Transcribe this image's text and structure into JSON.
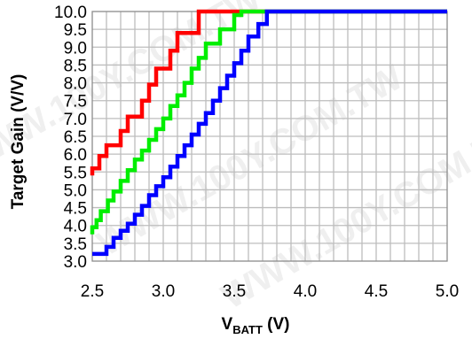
{
  "chart_data": {
    "type": "line",
    "xlabel_main": "V",
    "xlabel_sub": "BATT",
    "xlabel_unit": " (V)",
    "ylabel": "Target Gain (V/V)",
    "xlim": [
      2.5,
      5.0
    ],
    "ylim": [
      3.0,
      10.0
    ],
    "x_ticks": [
      "2.5",
      "3.0",
      "3.5",
      "4.0",
      "4.5",
      "5.0"
    ],
    "y_ticks": [
      "3.0",
      "3.5",
      "4.0",
      "4.5",
      "5.0",
      "5.5",
      "6.0",
      "6.5",
      "7.0",
      "7.5",
      "8.0",
      "8.5",
      "9.0",
      "9.5",
      "10.0"
    ],
    "grid": true,
    "watermark": "WWW.100Y.COM.TW",
    "series": [
      {
        "color": "#ff0000",
        "x": [
          2.5,
          2.5,
          2.55,
          2.55,
          2.6,
          2.6,
          2.7,
          2.7,
          2.75,
          2.75,
          2.85,
          2.85,
          2.9,
          2.9,
          2.95,
          2.95,
          3.05,
          3.05,
          3.1,
          3.1,
          3.15,
          3.15,
          3.25,
          3.25,
          5.0
        ],
        "y": [
          5.4,
          5.6,
          5.6,
          5.95,
          5.95,
          6.25,
          6.25,
          6.65,
          6.65,
          7.05,
          7.05,
          7.5,
          7.5,
          7.95,
          7.95,
          8.4,
          8.4,
          8.9,
          8.9,
          9.4,
          9.4,
          9.4,
          9.4,
          10.0,
          10.0
        ]
      },
      {
        "color": "#00ee00",
        "x": [
          2.5,
          2.5,
          2.53,
          2.53,
          2.56,
          2.56,
          2.61,
          2.61,
          2.65,
          2.65,
          2.7,
          2.7,
          2.75,
          2.75,
          2.8,
          2.8,
          2.85,
          2.85,
          2.9,
          2.9,
          2.95,
          2.95,
          3.0,
          3.0,
          3.05,
          3.05,
          3.1,
          3.1,
          3.15,
          3.15,
          3.2,
          3.2,
          3.25,
          3.25,
          3.3,
          3.3,
          3.4,
          3.4,
          3.45,
          3.45,
          3.5,
          3.5,
          3.55,
          3.55,
          3.62,
          3.62,
          5.0
        ],
        "y": [
          3.75,
          3.95,
          3.95,
          4.15,
          4.15,
          4.4,
          4.4,
          4.7,
          4.7,
          4.95,
          4.95,
          5.25,
          5.25,
          5.55,
          5.55,
          5.85,
          5.85,
          6.1,
          6.1,
          6.4,
          6.4,
          6.7,
          6.7,
          7.0,
          7.0,
          7.35,
          7.35,
          7.65,
          7.65,
          8.0,
          8.0,
          8.4,
          8.4,
          8.7,
          8.7,
          9.1,
          9.1,
          9.5,
          9.5,
          9.5,
          9.5,
          9.9,
          9.9,
          10.0,
          10.0,
          10.0,
          10.0
        ]
      },
      {
        "color": "#0000ff",
        "x": [
          2.5,
          2.6,
          2.6,
          2.65,
          2.65,
          2.7,
          2.7,
          2.75,
          2.75,
          2.8,
          2.8,
          2.85,
          2.85,
          2.9,
          2.9,
          2.95,
          2.95,
          3.0,
          3.0,
          3.05,
          3.05,
          3.1,
          3.1,
          3.15,
          3.15,
          3.2,
          3.2,
          3.25,
          3.25,
          3.3,
          3.3,
          3.35,
          3.35,
          3.4,
          3.4,
          3.45,
          3.45,
          3.5,
          3.5,
          3.55,
          3.55,
          3.6,
          3.6,
          3.67,
          3.67,
          3.73,
          3.73,
          5.0
        ],
        "y": [
          3.2,
          3.2,
          3.4,
          3.4,
          3.65,
          3.65,
          3.85,
          3.85,
          4.05,
          4.05,
          4.3,
          4.3,
          4.55,
          4.55,
          4.85,
          4.85,
          5.1,
          5.1,
          5.35,
          5.35,
          5.65,
          5.65,
          5.95,
          5.95,
          6.25,
          6.25,
          6.55,
          6.55,
          6.85,
          6.85,
          7.15,
          7.15,
          7.5,
          7.5,
          7.85,
          7.85,
          8.2,
          8.2,
          8.55,
          8.55,
          8.9,
          8.9,
          9.3,
          9.3,
          9.65,
          9.65,
          10.0,
          10.0
        ]
      }
    ]
  }
}
